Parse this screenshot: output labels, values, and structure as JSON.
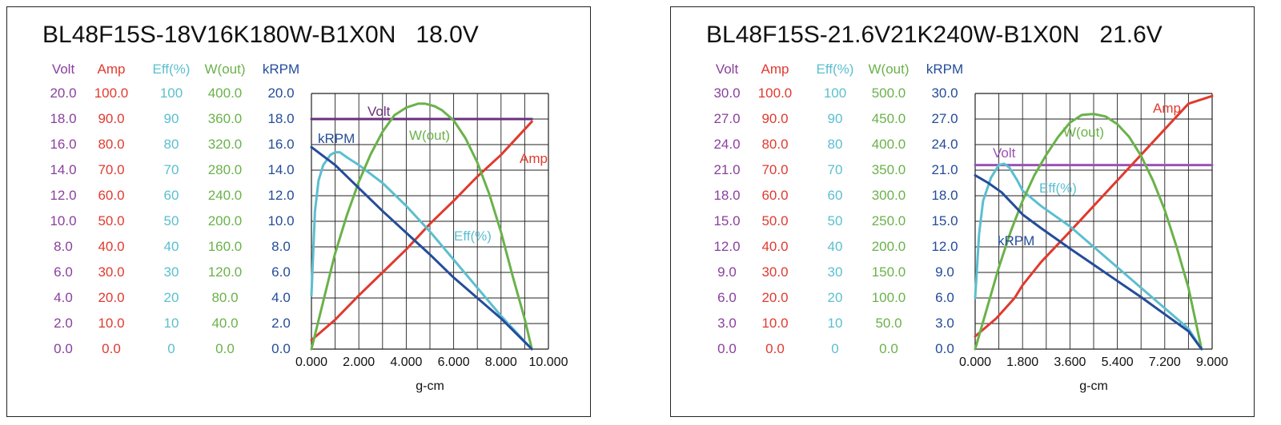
{
  "chart_data": [
    {
      "type": "line",
      "title": "BL48F15S-18V16K180W-B1X0N",
      "subtitle": "18.0V",
      "xlabel": "g-cm",
      "x_ticks": [
        "0.000",
        "2.000",
        "4.000",
        "6.000",
        "8.000",
        "10.000"
      ],
      "xlim": [
        0,
        10
      ],
      "axes": [
        {
          "name": "Volt",
          "color": "#8a3f9e",
          "ylim": [
            0,
            20
          ],
          "ticks": [
            "0.0",
            "2.0",
            "4.0",
            "6.0",
            "8.0",
            "10.0",
            "12.0",
            "14.0",
            "16.0",
            "18.0",
            "20.0"
          ]
        },
        {
          "name": "Amp",
          "color": "#e03a2f",
          "ylim": [
            0,
            100
          ],
          "ticks": [
            "0.0",
            "10.0",
            "20.0",
            "30.0",
            "40.0",
            "50.0",
            "60.0",
            "70.0",
            "80.0",
            "90.0",
            "100.0"
          ]
        },
        {
          "name": "Eff(%)",
          "color": "#5bbfcf",
          "ylim": [
            0,
            100
          ],
          "ticks": [
            "0",
            "10",
            "20",
            "30",
            "40",
            "50",
            "60",
            "70",
            "80",
            "90",
            "100"
          ]
        },
        {
          "name": "W(out)",
          "color": "#6ab24a",
          "ylim": [
            0,
            400
          ],
          "ticks": [
            "0.0",
            "40.0",
            "80.0",
            "120.0",
            "160.0",
            "200.0",
            "240.0",
            "280.0",
            "320.0",
            "360.0",
            "400.0"
          ]
        },
        {
          "name": "kRPM",
          "color": "#244c9a",
          "ylim": [
            0,
            20
          ],
          "ticks": [
            "0.0",
            "2.0",
            "4.0",
            "6.0",
            "8.0",
            "10.0",
            "12.0",
            "14.0",
            "16.0",
            "18.0",
            "20.0"
          ]
        }
      ],
      "series": [
        {
          "name": "Volt",
          "axis": 0,
          "color": "#6a2f7e",
          "label": "Volt",
          "x": [
            0,
            9.3
          ],
          "y": [
            18.0,
            18.0
          ]
        },
        {
          "name": "Amp",
          "axis": 1,
          "color": "#e03a2f",
          "label": "Amp",
          "x": [
            0,
            1,
            2,
            3,
            4,
            5,
            6,
            7,
            8,
            9.3
          ],
          "y": [
            3.5,
            11.5,
            21,
            30,
            39,
            49,
            58,
            67.5,
            76,
            89
          ]
        },
        {
          "name": "Eff(%)",
          "axis": 2,
          "color": "#5bbfcf",
          "label": "Eff(%)",
          "x": [
            0,
            0.15,
            0.3,
            0.5,
            0.8,
            1.0,
            1.2,
            1.5,
            2.0,
            3.0,
            4.0,
            5.0,
            6.0,
            7.0,
            8.0,
            9.3
          ],
          "y": [
            21,
            54,
            66,
            72,
            76,
            77,
            77,
            75,
            72,
            65,
            56,
            46,
            35,
            24,
            13,
            0
          ]
        },
        {
          "name": "W(out)",
          "axis": 3,
          "color": "#6ab24a",
          "label": "W(out)",
          "x": [
            0,
            0.5,
            1,
            1.5,
            2,
            2.5,
            3,
            3.5,
            4,
            4.5,
            4.8,
            5.2,
            5.5,
            6,
            6.5,
            7,
            7.5,
            8,
            8.5,
            9,
            9.3
          ],
          "y": [
            0,
            75,
            150,
            210,
            262,
            305,
            340,
            366,
            378,
            384,
            384,
            380,
            374,
            358,
            330,
            292,
            243,
            183,
            113,
            47,
            0
          ]
        },
        {
          "name": "kRPM",
          "axis": 4,
          "color": "#244c9a",
          "label": "kRPM",
          "x": [
            0,
            1,
            2,
            3,
            4,
            5,
            6,
            7,
            8,
            9.3
          ],
          "y": [
            15.8,
            14.4,
            12.6,
            10.8,
            9.1,
            7.4,
            5.6,
            4.0,
            2.4,
            0
          ]
        }
      ]
    },
    {
      "type": "line",
      "title": "BL48F15S-21.6V21K240W-B1X0N",
      "subtitle": "21.6V",
      "xlabel": "g-cm",
      "x_ticks": [
        "0.000",
        "1.800",
        "3.600",
        "5.400",
        "7.200",
        "9.000"
      ],
      "xlim": [
        0,
        9
      ],
      "axes": [
        {
          "name": "Volt",
          "color": "#8a3f9e",
          "ylim": [
            0,
            30
          ],
          "ticks": [
            "0.0",
            "3.0",
            "6.0",
            "9.0",
            "12.0",
            "15.0",
            "18.0",
            "21.0",
            "24.0",
            "27.0",
            "30.0"
          ]
        },
        {
          "name": "Amp",
          "color": "#e03a2f",
          "ylim": [
            0,
            100
          ],
          "ticks": [
            "0.0",
            "10.0",
            "20.0",
            "30.0",
            "40.0",
            "50.0",
            "60.0",
            "70.0",
            "80.0",
            "90.0",
            "100.0"
          ]
        },
        {
          "name": "Eff(%)",
          "color": "#5bbfcf",
          "ylim": [
            0,
            100
          ],
          "ticks": [
            "0",
            "10",
            "20",
            "30",
            "40",
            "50",
            "60",
            "70",
            "80",
            "90",
            "100"
          ]
        },
        {
          "name": "W(out)",
          "color": "#6ab24a",
          "ylim": [
            0,
            500
          ],
          "ticks": [
            "0.0",
            "50.0",
            "100.0",
            "150.0",
            "200.0",
            "250.0",
            "300.0",
            "350.0",
            "400.0",
            "450.0",
            "500.0"
          ]
        },
        {
          "name": "kRPM",
          "color": "#244c9a",
          "ylim": [
            0,
            30
          ],
          "ticks": [
            "0.0",
            "3.0",
            "6.0",
            "9.0",
            "12.0",
            "15.0",
            "18.0",
            "21.0",
            "24.0",
            "27.0",
            "30.0"
          ]
        }
      ],
      "series": [
        {
          "name": "Volt",
          "axis": 0,
          "color": "#9a52b5",
          "label": "Volt",
          "x": [
            0,
            9.0
          ],
          "y": [
            21.6,
            21.6
          ]
        },
        {
          "name": "Amp",
          "axis": 1,
          "color": "#e03a2f",
          "label": "Amp",
          "x": [
            0,
            0.8,
            1.5,
            1.8,
            2.5,
            3.6,
            4.5,
            5.4,
            6.3,
            7.2,
            8.1,
            9.0
          ],
          "y": [
            5,
            12,
            20,
            25,
            34,
            46,
            56,
            66,
            76,
            86,
            96,
            99
          ]
        },
        {
          "name": "Eff(%)",
          "axis": 2,
          "color": "#5bbfcf",
          "label": "Eff(%)",
          "x": [
            0,
            0.15,
            0.3,
            0.6,
            0.9,
            1.1,
            1.3,
            1.6,
            1.8,
            2.5,
            3.6,
            4.5,
            5.4,
            6.3,
            7.2,
            8.1,
            8.6
          ],
          "y": [
            20,
            45,
            58,
            67,
            72,
            72.5,
            71,
            66,
            62,
            56,
            48,
            40,
            32,
            24,
            16,
            8,
            0
          ]
        },
        {
          "name": "W(out)",
          "axis": 3,
          "color": "#6ab24a",
          "label": "W(out)",
          "x": [
            0,
            0.45,
            0.9,
            1.35,
            1.8,
            2.25,
            2.7,
            3.15,
            3.6,
            4.05,
            4.5,
            4.95,
            5.4,
            5.85,
            6.3,
            6.75,
            7.2,
            7.65,
            8.1,
            8.6
          ],
          "y": [
            0,
            80,
            160,
            230,
            290,
            340,
            380,
            415,
            443,
            458,
            460,
            455,
            440,
            415,
            378,
            330,
            272,
            200,
            120,
            0
          ]
        },
        {
          "name": "kRPM",
          "axis": 4,
          "color": "#244c9a",
          "label": "kRPM",
          "x": [
            0,
            0.5,
            1.0,
            1.5,
            1.8,
            2.5,
            3.6,
            4.5,
            5.4,
            6.3,
            7.2,
            8.1,
            8.6
          ],
          "y": [
            20.4,
            19.5,
            18.4,
            16.8,
            15.8,
            14.2,
            11.8,
            9.9,
            8.0,
            6.1,
            4.1,
            2.1,
            0
          ]
        }
      ]
    }
  ]
}
